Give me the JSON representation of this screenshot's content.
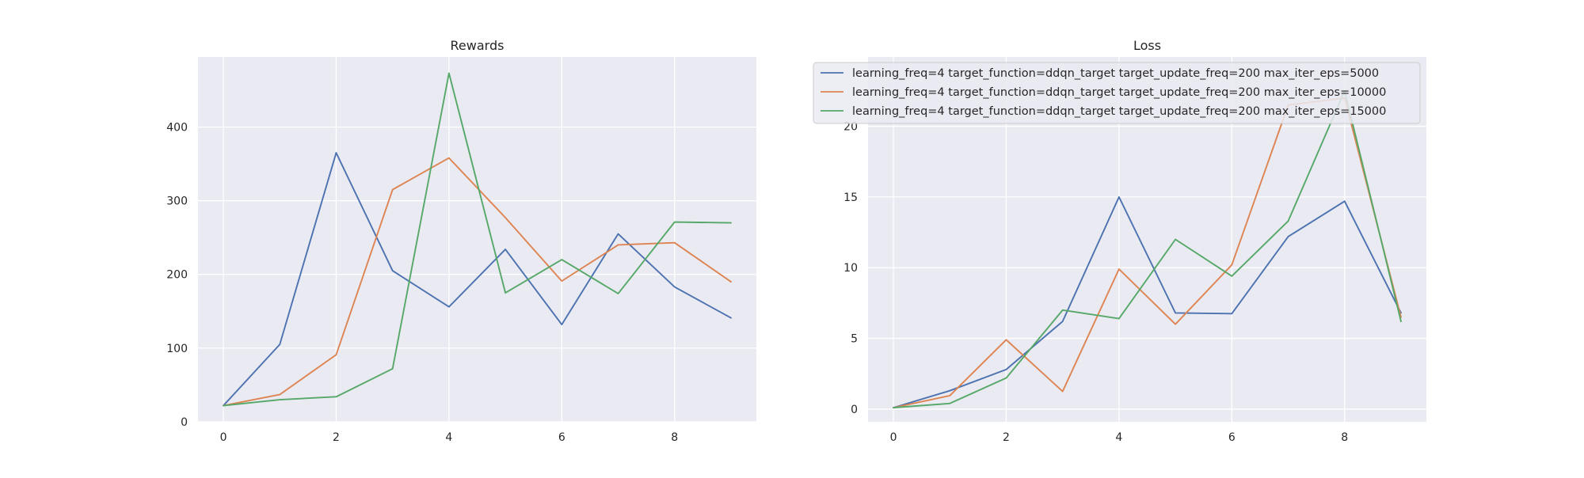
{
  "chart_data": [
    {
      "type": "line",
      "title": "Rewards",
      "xlabel": "",
      "ylabel": "",
      "xlim": [
        -0.45,
        9.45
      ],
      "ylim": [
        0,
        495
      ],
      "xticks": [
        0,
        2,
        4,
        6,
        8
      ],
      "yticks": [
        0,
        100,
        200,
        300,
        400
      ],
      "grid": true,
      "x": [
        0,
        1,
        2,
        3,
        4,
        5,
        6,
        7,
        8,
        9
      ],
      "series": [
        {
          "name": "learning_freq=4 target_function=ddqn_target target_update_freq=200 max_iter_eps=5000",
          "color": "#4c72b0",
          "values": [
            22,
            105,
            365,
            205,
            156,
            234,
            132,
            255,
            183,
            141
          ]
        },
        {
          "name": "learning_freq=4 target_function=ddqn_target target_update_freq=200 max_iter_eps=10000",
          "color": "#dd8452",
          "values": [
            22,
            37,
            91,
            315,
            358,
            277,
            191,
            240,
            243,
            190
          ]
        },
        {
          "name": "learning_freq=4 target_function=ddqn_target target_update_freq=200 max_iter_eps=15000",
          "color": "#55a868",
          "values": [
            22,
            30,
            34,
            72,
            473,
            175,
            220,
            174,
            271,
            270
          ]
        }
      ]
    },
    {
      "type": "line",
      "title": "Loss",
      "xlabel": "",
      "ylabel": "",
      "xlim": [
        -0.45,
        9.45
      ],
      "ylim": [
        -0.9,
        24.9
      ],
      "xticks": [
        0,
        2,
        4,
        6,
        8
      ],
      "yticks": [
        0,
        5,
        10,
        15,
        20
      ],
      "grid": true,
      "legend": "top-right",
      "x": [
        0,
        1,
        2,
        3,
        4,
        5,
        6,
        7,
        8,
        9
      ],
      "series": [
        {
          "name": "learning_freq=4 target_function=ddqn_target target_update_freq=200 max_iter_eps=5000",
          "color": "#4c72b0",
          "values": [
            0.1,
            1.3,
            2.8,
            6.2,
            15.0,
            6.8,
            6.75,
            12.2,
            14.7,
            6.8
          ]
        },
        {
          "name": "learning_freq=4 target_function=ddqn_target target_update_freq=200 max_iter_eps=10000",
          "color": "#dd8452",
          "values": [
            0.1,
            0.95,
            4.9,
            1.25,
            9.9,
            6.0,
            10.2,
            21.5,
            22.0,
            6.5
          ]
        },
        {
          "name": "learning_freq=4 target_function=ddqn_target target_update_freq=200 max_iter_eps=15000",
          "color": "#55a868",
          "values": [
            0.1,
            0.4,
            2.2,
            7.0,
            6.4,
            12.0,
            9.4,
            13.3,
            22.5,
            6.2
          ]
        }
      ]
    }
  ]
}
